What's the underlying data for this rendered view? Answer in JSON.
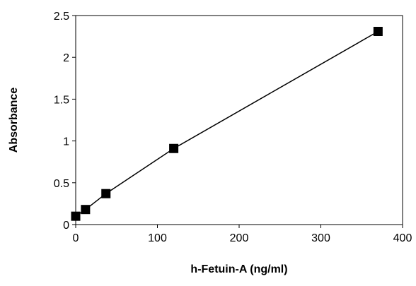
{
  "chart_data": {
    "type": "scatter",
    "title": "",
    "xlabel": "h-Fetuin-A (ng/ml)",
    "ylabel": "Absorbance",
    "xlim": [
      0,
      400
    ],
    "ylim": [
      0,
      2.5
    ],
    "x_ticks": [
      "0",
      "100",
      "200",
      "300",
      "400"
    ],
    "y_ticks": [
      "0",
      "0.5",
      "1",
      "1.5",
      "2",
      "2.5"
    ],
    "grid": false,
    "legend": "none",
    "marker": "square",
    "connected": true,
    "series": [
      {
        "color": "#000000",
        "points": [
          {
            "x": 0,
            "y": 0.1
          },
          {
            "x": 12,
            "y": 0.18
          },
          {
            "x": 37,
            "y": 0.37
          },
          {
            "x": 120,
            "y": 0.91
          },
          {
            "x": 370,
            "y": 2.31
          }
        ]
      }
    ]
  }
}
